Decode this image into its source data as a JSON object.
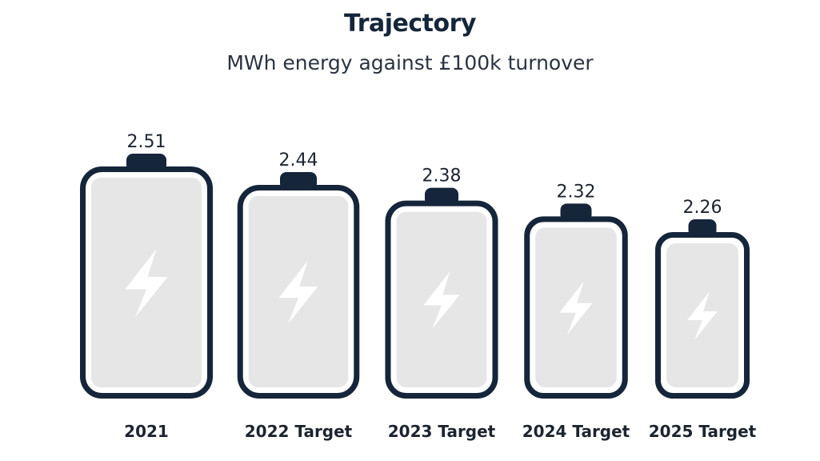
{
  "chart_data": {
    "type": "bar",
    "title": "Trajectory",
    "subtitle": "MWh energy against £100k turnover",
    "categories": [
      "2021",
      "2022 Target",
      "2023 Target",
      "2024 Target",
      "2025 Target"
    ],
    "values": [
      2.51,
      2.44,
      2.38,
      2.32,
      2.26
    ],
    "value_labels": [
      "2.51",
      "2.44",
      "2.38",
      "2.32",
      "2.26"
    ],
    "xlabel": "",
    "ylabel": "",
    "grid": false,
    "legend": "none",
    "icon": "battery-icon",
    "inner_icon": "lightning-bolt-icon"
  },
  "colors": {
    "battery_outline": "#15253a",
    "battery_fill": "#e6e6e6",
    "bolt": "#ffffff",
    "text": "#1c2430"
  }
}
